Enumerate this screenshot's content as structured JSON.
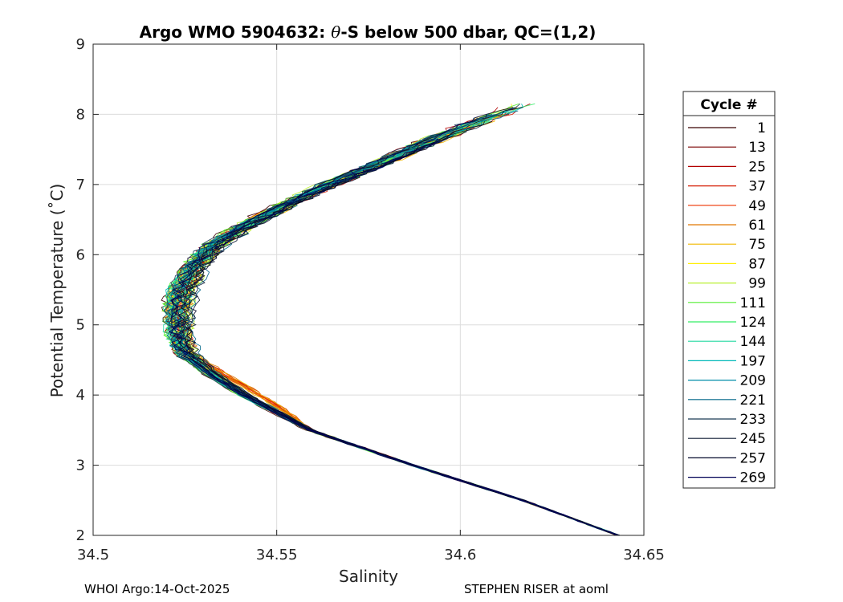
{
  "footer": {
    "left": "WHOI Argo:14-Oct-2025",
    "right": "STEPHEN RISER at aoml"
  },
  "chart_data": {
    "type": "line",
    "title": "Argo WMO 5904632: θ-S below 500 dbar,  QC=(1,2)",
    "title_parts": {
      "prefix": "Argo WMO 5904632: ",
      "theta": "θ",
      "suffix": "-S below 500 dbar,  QC=(1,2)"
    },
    "xlabel": "Salinity",
    "ylabel": "Potential Temperature (˚C)",
    "xlim": [
      34.5,
      34.65
    ],
    "ylim": [
      2,
      9
    ],
    "xticks": [
      34.5,
      34.55,
      34.6,
      34.65
    ],
    "xtick_labels": [
      "34.5",
      "34.55",
      "34.6",
      "34.65"
    ],
    "yticks": [
      2,
      3,
      4,
      5,
      6,
      7,
      8,
      9
    ],
    "ytick_labels": [
      "2",
      "3",
      "4",
      "5",
      "6",
      "7",
      "8",
      "9"
    ],
    "grid": true,
    "legend": {
      "title": "Cycle #",
      "placement": "outside-right",
      "entries": [
        {
          "label": "1",
          "color": "#3a0000"
        },
        {
          "label": "13",
          "color": "#7a0000"
        },
        {
          "label": "25",
          "color": "#b30000"
        },
        {
          "label": "37",
          "color": "#d41a00"
        },
        {
          "label": "49",
          "color": "#ee3300"
        },
        {
          "label": "61",
          "color": "#e07800"
        },
        {
          "label": "75",
          "color": "#f2b800"
        },
        {
          "label": "87",
          "color": "#ffee00"
        },
        {
          "label": "99",
          "color": "#b8f030"
        },
        {
          "label": "111",
          "color": "#55ee33"
        },
        {
          "label": "124",
          "color": "#33ee66"
        },
        {
          "label": "144",
          "color": "#22d8a0"
        },
        {
          "label": "197",
          "color": "#00b8b8"
        },
        {
          "label": "209",
          "color": "#008da8"
        },
        {
          "label": "221",
          "color": "#006688"
        },
        {
          "label": "233",
          "color": "#1a3a55"
        },
        {
          "label": "245",
          "color": "#0d1a33"
        },
        {
          "label": "257",
          "color": "#05082a"
        },
        {
          "label": "269",
          "color": "#000055"
        }
      ]
    },
    "mean_profile": {
      "temp": [
        2.0,
        2.5,
        3.0,
        3.5,
        4.0,
        4.3,
        4.6,
        4.9,
        5.2,
        5.5,
        5.8,
        6.1,
        6.4,
        6.7,
        7.0,
        7.3,
        7.6,
        7.9,
        8.15
      ],
      "salinity": [
        34.643,
        34.617,
        34.587,
        34.559,
        34.541,
        34.532,
        34.525,
        34.523,
        34.523,
        34.524,
        34.527,
        34.532,
        34.541,
        34.552,
        34.564,
        34.578,
        34.591,
        34.605,
        34.617
      ]
    }
  }
}
